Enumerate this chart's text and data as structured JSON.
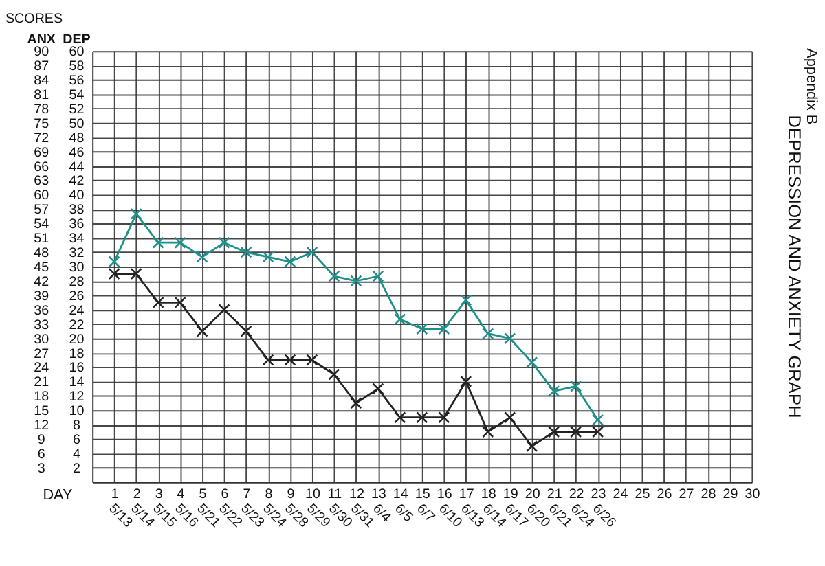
{
  "chart_data": {
    "type": "line",
    "title": "DEPRESSION AND ANXIETY GRAPH",
    "xlabel": "DAY",
    "ylabel": "ANX",
    "y2label": "DEP",
    "annotations": [
      "SCORES",
      "Appendix B",
      "5/13",
      "5/14",
      "5/15",
      "5/16",
      "5/21",
      "5/22",
      "5/23",
      "5/24",
      "5/28",
      "5/29",
      "5/30",
      "5/31",
      "6/4",
      "6/5",
      "6/7",
      "6/10",
      "6/13",
      "6/14",
      "6/17",
      "6/20",
      "6/21",
      "6/24",
      "6/26"
    ],
    "x": [
      1,
      2,
      3,
      4,
      5,
      6,
      7,
      8,
      9,
      10,
      11,
      12,
      13,
      14,
      15,
      16,
      17,
      18,
      19,
      20,
      21,
      22,
      23
    ],
    "xlim": [
      0,
      30
    ],
    "xticks": [
      1,
      2,
      3,
      4,
      5,
      6,
      7,
      8,
      9,
      10,
      11,
      12,
      13,
      14,
      15,
      16,
      17,
      18,
      19,
      20,
      21,
      22,
      23,
      24,
      25,
      26,
      27,
      28,
      29,
      30
    ],
    "ylim": [
      0,
      90
    ],
    "yticks": [
      3,
      6,
      9,
      12,
      15,
      18,
      21,
      24,
      27,
      30,
      33,
      36,
      39,
      42,
      45,
      48,
      51,
      54,
      57,
      60,
      63,
      66,
      69,
      72,
      75,
      78,
      81,
      84,
      87,
      90
    ],
    "y2lim": [
      0,
      60
    ],
    "y2ticks": [
      2,
      4,
      6,
      8,
      10,
      12,
      14,
      16,
      18,
      20,
      22,
      24,
      26,
      28,
      30,
      32,
      34,
      36,
      38,
      40,
      42,
      44,
      46,
      48,
      50,
      52,
      54,
      56,
      58,
      60
    ],
    "series": [
      {
        "color": "#1f8f8b",
        "values": [
          46,
          56,
          50,
          50,
          47,
          50,
          48,
          47,
          46,
          48,
          43,
          42,
          43,
          34,
          32,
          32,
          38,
          31,
          30,
          25,
          19,
          20,
          13
        ]
      },
      {
        "color": "#222222",
        "axis": "y2",
        "values": [
          29,
          29,
          25,
          25,
          21,
          24,
          21,
          17,
          17,
          17,
          15,
          11,
          13,
          9,
          9,
          9,
          14,
          7,
          9,
          5,
          7,
          7,
          7
        ]
      }
    ],
    "grid": true,
    "marker": "cross",
    "line_style": "solid"
  }
}
